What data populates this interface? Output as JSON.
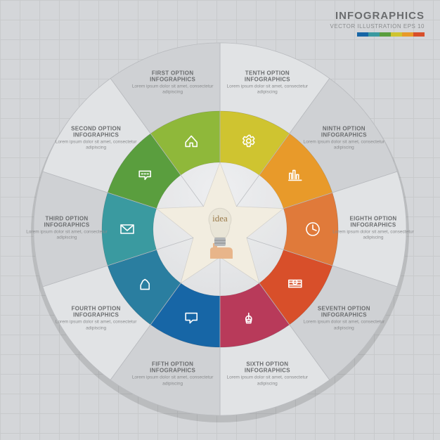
{
  "header": {
    "title": "INFOGRAPHICS",
    "subtitle": "VECTOR ILLUSTRATION EPS 10"
  },
  "legend_colors": [
    "#1766a6",
    "#3a9aa0",
    "#5a9e3e",
    "#cfc430",
    "#e89a2a",
    "#d84f2a"
  ],
  "background": {
    "color": "#d4d6d9",
    "grid_color": "#c8cacc",
    "grid_size": 28
  },
  "chart": {
    "type": "radial-segments-infographic",
    "center": {
      "idea_label": "idea",
      "star_fill": "#f2ede0",
      "bulb_glass": "#e8e4d6",
      "bulb_base": "#b5b8bb",
      "hand_color": "#e8b58a"
    },
    "outer_radius": 265,
    "outer_ring_outer": 265,
    "outer_ring_inner": 168,
    "inner_ring_outer": 168,
    "inner_ring_inner": 95,
    "star_radius": 95,
    "segment_count": 10,
    "outer_ring_fill_light": "#e1e3e5",
    "outer_ring_fill_dark": "#cfd1d4",
    "divider_stroke": "#b8babe",
    "label_radius": 218,
    "icon_radius": 132,
    "segments": [
      {
        "idx": 0,
        "angle_start": -90,
        "color": "#cfc430",
        "icon": "gear",
        "title": "TENTH OPTION",
        "subtitle": "INFOGRAPHICS"
      },
      {
        "idx": 1,
        "angle_start": -54,
        "color": "#e89a2a",
        "icon": "chart",
        "title": "NINTH OPTION",
        "subtitle": "INFOGRAPHICS"
      },
      {
        "idx": 2,
        "angle_start": -18,
        "color": "#e07a3a",
        "icon": "clock",
        "title": "EIGHTH OPTION",
        "subtitle": "INFOGRAPHICS"
      },
      {
        "idx": 3,
        "angle_start": 18,
        "color": "#d84f2a",
        "icon": "money",
        "title": "SEVENTH OPTION",
        "subtitle": "INFOGRAPHICS"
      },
      {
        "idx": 4,
        "angle_start": 54,
        "color": "#b83a5a",
        "icon": "coin",
        "title": "SIXTH OPTION",
        "subtitle": "INFOGRAPHICS"
      },
      {
        "idx": 5,
        "angle_start": 90,
        "color": "#1766a6",
        "icon": "chat",
        "title": "FIFTH OPTION",
        "subtitle": "INFOGRAPHICS"
      },
      {
        "idx": 6,
        "angle_start": 126,
        "color": "#2a7ea0",
        "icon": "hand",
        "title": "FOURTH OPTION",
        "subtitle": "INFOGRAPHICS"
      },
      {
        "idx": 7,
        "angle_start": 162,
        "color": "#3a9aa0",
        "icon": "mail",
        "title": "THIRD OPTION",
        "subtitle": "INFOGRAPHICS"
      },
      {
        "idx": 8,
        "angle_start": 198,
        "color": "#5a9e3e",
        "icon": "msg",
        "title": "SECOND OPTION",
        "subtitle": "INFOGRAPHICS"
      },
      {
        "idx": 9,
        "angle_start": 234,
        "color": "#8fb83a",
        "icon": "home",
        "title": "FIRST OPTION",
        "subtitle": "INFOGRAPHICS"
      }
    ],
    "body_text": "Lorem ipsum dolor sit amet, consectetur adipiscing"
  }
}
